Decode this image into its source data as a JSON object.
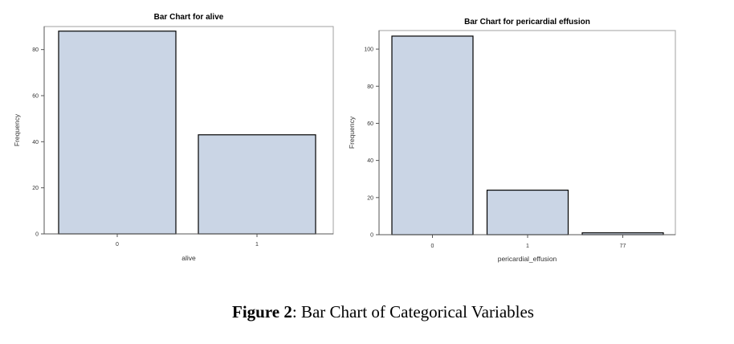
{
  "chart_data": [
    {
      "type": "bar",
      "title": "Bar Chart for alive",
      "xlabel": "alive",
      "ylabel": "Frequency",
      "categories": [
        "0",
        "1"
      ],
      "values": [
        88,
        43
      ],
      "ylim": [
        0,
        90
      ],
      "yticks": [
        0,
        20,
        40,
        60,
        80
      ],
      "grid": false,
      "bar_color": "#cad5e5",
      "bar_edge_color": "#000000"
    },
    {
      "type": "bar",
      "title": "Bar Chart for pericardial effusion",
      "xlabel": "pericardial_effusion",
      "ylabel": "Frequency",
      "categories": [
        "0",
        "1",
        "77"
      ],
      "values": [
        107,
        24,
        1
      ],
      "ylim": [
        0,
        110
      ],
      "yticks": [
        0,
        20,
        40,
        60,
        80,
        100
      ],
      "grid": false,
      "bar_color": "#cad5e5",
      "bar_edge_color": "#000000"
    }
  ],
  "caption": {
    "label": "Figure 2",
    "text": ": Bar Chart of Categorical Variables"
  }
}
